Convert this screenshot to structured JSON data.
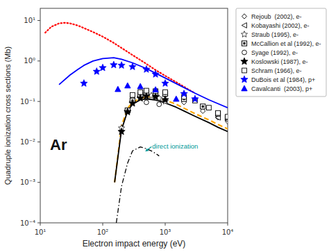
{
  "chart_data": {
    "type": "line",
    "title": "Ar",
    "xlabel": "Electron impact energy (eV)",
    "ylabel": "Quadruple ionization cross sections (Mb)",
    "log": true,
    "grid": false,
    "legend": "upper right",
    "xlim": [
      10,
      10000
    ],
    "ylim": [
      0.0001,
      20
    ],
    "xticks": [
      {
        "value": 10,
        "label": "10¹"
      },
      {
        "value": 100,
        "label": "10²"
      },
      {
        "value": 1000,
        "label": "10³"
      },
      {
        "value": 10000,
        "label": "10⁴"
      }
    ],
    "yticks": [
      {
        "value": 0.0001,
        "label": "10⁻⁴"
      },
      {
        "value": 0.001,
        "label": "10⁻³"
      },
      {
        "value": 0.01,
        "label": "10⁻²"
      },
      {
        "value": 0.1,
        "label": "10⁻¹"
      },
      {
        "value": 1,
        "label": "10⁰"
      },
      {
        "value": 10,
        "label": "10¹"
      }
    ],
    "annotations": [
      {
        "text": "direct ionization",
        "x": 620,
        "y": 0.0068,
        "arrow_x": 480,
        "arrow_y": 0.0058,
        "color": "#009999"
      }
    ],
    "series": [
      {
        "type": "line",
        "color": "red",
        "line_style": "dotted",
        "x": [
          12,
          15,
          20,
          25,
          30,
          40,
          50,
          70,
          100,
          150,
          200,
          300,
          500,
          700,
          1000,
          1500,
          2000,
          3000
        ],
        "values": [
          5.0,
          7.0,
          8.5,
          8.8,
          8.5,
          7.5,
          6.5,
          5.2,
          4.0,
          2.8,
          2.1,
          1.4,
          0.85,
          0.6,
          0.43,
          0.3,
          0.23,
          0.16
        ]
      },
      {
        "type": "line",
        "color": "blue",
        "line_style": "solid",
        "x": [
          20,
          30,
          40,
          50,
          70,
          100,
          150,
          200,
          300,
          500,
          700,
          1000,
          2000,
          3000,
          5000,
          10000
        ],
        "values": [
          0.26,
          0.45,
          0.62,
          0.78,
          1.0,
          1.15,
          1.2,
          1.1,
          0.9,
          0.65,
          0.5,
          0.38,
          0.22,
          0.16,
          0.11,
          0.07
        ]
      },
      {
        "type": "line",
        "color": "orange",
        "line_style": "dashed",
        "x": [
          155,
          200,
          250,
          300,
          400,
          500,
          600,
          700,
          800,
          1000,
          1500,
          2000,
          3000,
          5000,
          7000,
          10000
        ],
        "values": [
          0.001,
          0.025,
          0.068,
          0.095,
          0.12,
          0.13,
          0.13,
          0.125,
          0.12,
          0.108,
          0.085,
          0.068,
          0.05,
          0.035,
          0.027,
          0.021
        ]
      },
      {
        "type": "line",
        "color": "black",
        "line_style": "solid",
        "x": [
          155,
          200,
          250,
          300,
          400,
          500,
          600,
          700,
          800,
          1000,
          1500,
          2000,
          3000,
          5000,
          7000,
          10000
        ],
        "values": [
          0.001,
          0.02,
          0.058,
          0.085,
          0.11,
          0.115,
          0.112,
          0.108,
          0.103,
          0.092,
          0.072,
          0.058,
          0.043,
          0.03,
          0.023,
          0.018
        ]
      },
      {
        "type": "line",
        "color": "black",
        "line_style": "dashdot",
        "x": [
          165,
          200,
          250,
          300,
          400,
          500,
          600,
          700,
          800
        ],
        "values": [
          0.0001,
          0.0008,
          0.003,
          0.006,
          0.0075,
          0.0068,
          0.006,
          0.0052,
          0.0045
        ]
      },
      {
        "type": "scatter",
        "name": "Rejoub  (2002), e-",
        "color": "black",
        "marker": "open-diamond",
        "x": [
          300,
          400,
          500,
          700,
          1000,
          2000,
          4000,
          7000,
          10000
        ],
        "values": [
          0.13,
          0.155,
          0.165,
          0.155,
          0.14,
          0.095,
          0.058,
          0.04,
          0.032
        ]
      },
      {
        "type": "scatter",
        "name": "Kobayashi (2002), e-",
        "color": "black",
        "marker": "open-triangle-left",
        "x": [
          7000,
          10000
        ],
        "values": [
          0.04,
          0.034
        ]
      },
      {
        "type": "scatter",
        "name": "Straub (1995), e-",
        "color": "black",
        "marker": "open-star",
        "x": [
          200,
          250,
          300,
          400,
          500,
          600,
          800,
          1000
        ],
        "values": [
          0.022,
          0.058,
          0.095,
          0.125,
          0.14,
          0.14,
          0.12,
          0.1
        ]
      },
      {
        "type": "scatter",
        "name": "McCallion et al (1992), e-",
        "color": "black",
        "marker": "boxed-square",
        "x": [
          250,
          300,
          400,
          500,
          700,
          1000,
          2000,
          4000,
          7000,
          10000
        ],
        "values": [
          0.06,
          0.105,
          0.145,
          0.165,
          0.165,
          0.155,
          0.115,
          0.075,
          0.05,
          0.04
        ]
      },
      {
        "type": "scatter",
        "name": "Syage (1992), e-",
        "color": "black",
        "marker": "open-circle",
        "x": [
          500,
          800
        ],
        "values": [
          0.095,
          0.085
        ]
      },
      {
        "type": "scatter",
        "name": "Koslowski (1987), e-",
        "color": "black",
        "marker": "filled-star",
        "x": [
          200,
          250,
          300,
          400,
          500,
          700,
          1000
        ],
        "values": [
          0.018,
          0.055,
          0.09,
          0.12,
          0.135,
          0.13,
          0.11
        ]
      },
      {
        "type": "scatter",
        "name": "Schram (1966), e-",
        "color": "black",
        "marker": "open-square",
        "x": [
          300,
          400,
          500,
          700,
          1000,
          2000,
          3000,
          5000,
          7000,
          10000
        ],
        "values": [
          0.145,
          0.17,
          0.185,
          0.18,
          0.17,
          0.13,
          0.105,
          0.07,
          0.052,
          0.042
        ]
      },
      {
        "type": "scatter",
        "name": "DuBois et al (1984), p+",
        "color": "blue",
        "marker": "filled-star",
        "x": [
          50,
          80,
          100,
          150,
          200,
          300,
          500,
          700,
          1000,
          2000,
          3000
        ],
        "values": [
          0.28,
          0.55,
          0.68,
          0.8,
          0.78,
          0.72,
          0.62,
          0.47,
          0.28,
          0.155,
          0.115
        ]
      },
      {
        "type": "scatter",
        "name": "Cavalcanti  (2003), p+",
        "color": "blue",
        "marker": "filled-triangle-up",
        "x": [
          175,
          250,
          400,
          700,
          1500
        ],
        "values": [
          0.2,
          0.245,
          0.235,
          0.195,
          0.115
        ]
      }
    ]
  }
}
